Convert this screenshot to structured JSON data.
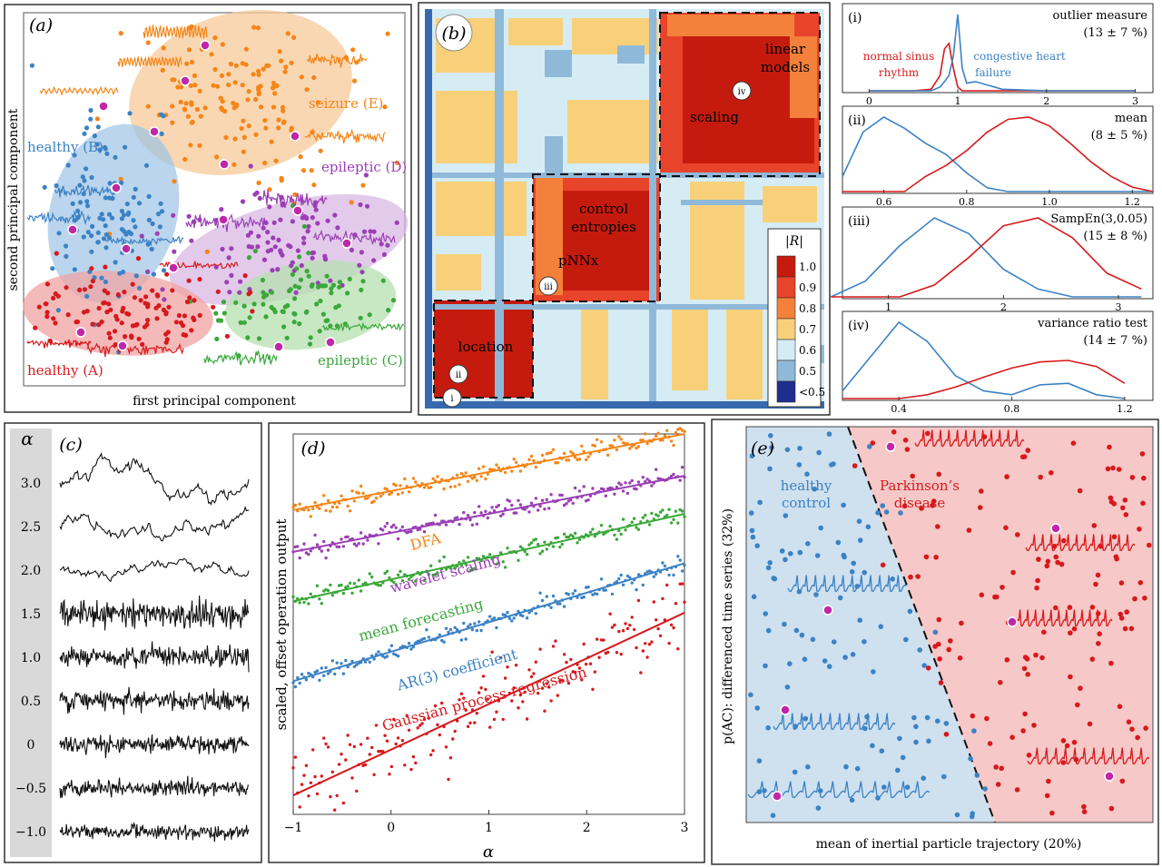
{
  "colors": {
    "red": "#d7191c",
    "orange": "#f58518",
    "blue": "#3b82c4",
    "purple": "#9b3fb5",
    "green": "#3aa83a",
    "magenta": "#c026a8",
    "ellipse_red": "#f0a3a3",
    "ellipse_orange": "#f7c99a",
    "ellipse_blue": "#9cc3e6",
    "ellipse_purple": "#d7b3e3",
    "ellipse_green": "#b6e0b0",
    "heat_scale": [
      "#c51b0e",
      "#e8432b",
      "#f4813b",
      "#f8d07a",
      "#d6ecf4",
      "#8fb9d9",
      "#3869ad",
      "#1d2e8f"
    ]
  },
  "panel_a": {
    "tag": "(a)",
    "xlabel": "first principal component",
    "ylabel": "second principal component",
    "labels": {
      "healthy_b": "healthy (B)",
      "seizure_e": "seizure (E)",
      "epileptic_d": "epileptic (D)",
      "epileptic_c": "epileptic (C)",
      "healthy_a": "healthy (A)"
    }
  },
  "panel_b": {
    "tag": "(b)",
    "blocks": {
      "linear_models": [
        "linear",
        "models"
      ],
      "scaling": "scaling",
      "control_entropies": [
        "control",
        "entropies"
      ],
      "pnnx": "pNNx",
      "location": "location"
    },
    "roman": [
      "i",
      "ii",
      "iii",
      "iv"
    ],
    "legend_title": "|R|",
    "legend_ticks": [
      "1.0",
      "0.9",
      "0.8",
      "0.7",
      "0.6",
      "0.5",
      "<0.5"
    ]
  },
  "panel_right": {
    "subplots": [
      {
        "id": "(i)",
        "title": "outlier measure",
        "stat": "(13 ± 7 %)",
        "ticks": [
          "0",
          "1",
          "2",
          "3"
        ],
        "legend_red": [
          "normal sinus",
          "rhythm"
        ],
        "legend_blue": [
          "congestive heart",
          "failure"
        ]
      },
      {
        "id": "(ii)",
        "title": "mean",
        "stat": "(8 ± 5 %)",
        "ticks": [
          "0.6",
          "0.8",
          "1.0",
          "1.2"
        ]
      },
      {
        "id": "(iii)",
        "title": "SampEn(3,0.05)",
        "stat": "(15 ± 8 %)",
        "ticks": [
          "1",
          "2",
          "3"
        ]
      },
      {
        "id": "(iv)",
        "title": "variance ratio test",
        "stat": "(14 ± 7 %)",
        "ticks": [
          "0.4",
          "0.8",
          "1.2"
        ]
      }
    ]
  },
  "panel_c": {
    "tag": "(c)",
    "axis_symbol": "α",
    "alphas": [
      "3.0",
      "2.5",
      "2.0",
      "1.5",
      "1.0",
      "0.5",
      "0",
      "−0.5",
      "−1.0"
    ]
  },
  "panel_d": {
    "tag": "(d)",
    "ylabel": "scaled, offset operation output",
    "xlabel": "α",
    "series_labels": [
      "DFA",
      "wavelet scaling",
      "mean forecasting",
      "AR(3) coefficient",
      "Gaussian process regression"
    ]
  },
  "panel_e": {
    "tag": "(e)",
    "xlabel": "mean of inertial particle trajectory (20%)",
    "ylabel": "p(AC): differenced time series (32%)",
    "healthy": [
      "healthy",
      "control"
    ],
    "parkinsons": [
      "Parkinson’s",
      "disease"
    ]
  },
  "chart_data": [
    {
      "type": "scatter",
      "panel": "(a)",
      "xlabel": "first principal component",
      "ylabel": "second principal component",
      "series": [
        {
          "name": "healthy (A)",
          "color": "#d7191c"
        },
        {
          "name": "healthy (B)",
          "color": "#3b82c4"
        },
        {
          "name": "epileptic (C)",
          "color": "#3aa83a"
        },
        {
          "name": "epileptic (D)",
          "color": "#9b3fb5"
        },
        {
          "name": "seizure (E)",
          "color": "#f58518"
        }
      ]
    },
    {
      "type": "heatmap",
      "panel": "(b)",
      "colorbar_label": "|R|",
      "colorbar_ticks": [
        "1.0",
        "0.9",
        "0.8",
        "0.7",
        "0.6",
        "0.5",
        "<0.5"
      ],
      "clusters": [
        "location",
        "pNNx",
        "control entropies",
        "scaling",
        "linear models"
      ]
    },
    {
      "type": "line",
      "panel": "(i)",
      "title": "outlier measure (13 ± 7 %)",
      "x": [
        0,
        0.5,
        0.7,
        0.8,
        0.85,
        0.9,
        0.95,
        1.0,
        1.05,
        1.1,
        1.2,
        1.5,
        2,
        3
      ],
      "series": [
        {
          "name": "normal sinus rhythm",
          "values": [
            0,
            0,
            0.02,
            0.2,
            0.55,
            0.62,
            0.3,
            0.05,
            0,
            0,
            0,
            0,
            0,
            0
          ]
        },
        {
          "name": "congestive heart failure",
          "values": [
            0,
            0,
            0,
            0.05,
            0.12,
            0.2,
            0.45,
            1.0,
            0.3,
            0.1,
            0.12,
            0.02,
            0,
            0
          ]
        }
      ],
      "xlim": [
        -0.3,
        3.2
      ]
    },
    {
      "type": "line",
      "panel": "(ii)",
      "title": "mean (8 ± 5 %)",
      "x": [
        0.5,
        0.55,
        0.6,
        0.65,
        0.7,
        0.75,
        0.8,
        0.85,
        0.9,
        0.95,
        1.0,
        1.05,
        1.1,
        1.15,
        1.2,
        1.25
      ],
      "series": [
        {
          "name": "blue",
          "values": [
            0.2,
            0.8,
            1.0,
            0.85,
            0.65,
            0.5,
            0.25,
            0.05,
            0,
            0,
            0,
            0,
            0,
            0,
            0,
            0
          ]
        },
        {
          "name": "red",
          "values": [
            0,
            0,
            0,
            0,
            0.2,
            0.35,
            0.55,
            0.8,
            0.97,
            1.0,
            0.88,
            0.65,
            0.4,
            0.2,
            0.06,
            0
          ]
        }
      ],
      "xlim": [
        0.5,
        1.25
      ]
    },
    {
      "type": "line",
      "panel": "(iii)",
      "title": "SampEn(3,0.05) (15 ± 8 %)",
      "x": [
        0.5,
        0.8,
        1.1,
        1.4,
        1.7,
        2.0,
        2.3,
        2.6,
        2.9,
        3.2
      ],
      "series": [
        {
          "name": "blue",
          "values": [
            0,
            0.2,
            0.65,
            1.0,
            0.8,
            0.35,
            0.1,
            0,
            0,
            0
          ]
        },
        {
          "name": "red",
          "values": [
            0,
            0,
            0,
            0.15,
            0.5,
            0.9,
            1.0,
            0.75,
            0.3,
            0.1
          ]
        }
      ],
      "xlim": [
        0.6,
        3.3
      ]
    },
    {
      "type": "line",
      "panel": "(iv)",
      "title": "variance ratio test (14 ± 7 %)",
      "x": [
        0.2,
        0.3,
        0.4,
        0.5,
        0.6,
        0.7,
        0.8,
        0.9,
        1.0,
        1.1,
        1.2
      ],
      "series": [
        {
          "name": "blue",
          "values": [
            0.1,
            0.55,
            1.0,
            0.75,
            0.3,
            0.1,
            0.05,
            0.18,
            0.2,
            0.05,
            0
          ]
        },
        {
          "name": "red",
          "values": [
            0,
            0,
            0,
            0.05,
            0.15,
            0.28,
            0.4,
            0.48,
            0.5,
            0.42,
            0.2
          ]
        }
      ],
      "xlim": [
        0.2,
        1.3
      ]
    },
    {
      "type": "line",
      "panel": "(d)",
      "xlabel": "α",
      "ylabel": "scaled, offset operation output",
      "xlim": [
        -1,
        3
      ],
      "x_ticks": [
        "−1",
        "0",
        "1",
        "2",
        "3"
      ],
      "series": [
        {
          "name": "DFA",
          "x": [
            -1,
            3
          ],
          "values": [
            0.8,
            1.0
          ]
        },
        {
          "name": "wavelet scaling",
          "x": [
            -1,
            3
          ],
          "values": [
            0.69,
            0.89
          ]
        },
        {
          "name": "mean forecasting",
          "x": [
            -1,
            3
          ],
          "values": [
            0.56,
            0.79
          ]
        },
        {
          "name": "AR(3) coefficient",
          "x": [
            -1,
            3
          ],
          "values": [
            0.35,
            0.66
          ]
        },
        {
          "name": "Gaussian process regression",
          "x": [
            -1,
            3
          ],
          "values": [
            0.05,
            0.53
          ]
        }
      ]
    },
    {
      "type": "scatter",
      "panel": "(e)",
      "xlabel": "mean of inertial particle trajectory (20%)",
      "ylabel": "p(AC): differenced time series (32%)",
      "series": [
        {
          "name": "healthy control",
          "color": "#3b82c4"
        },
        {
          "name": "Parkinson’s disease",
          "color": "#d7191c"
        }
      ]
    }
  ]
}
